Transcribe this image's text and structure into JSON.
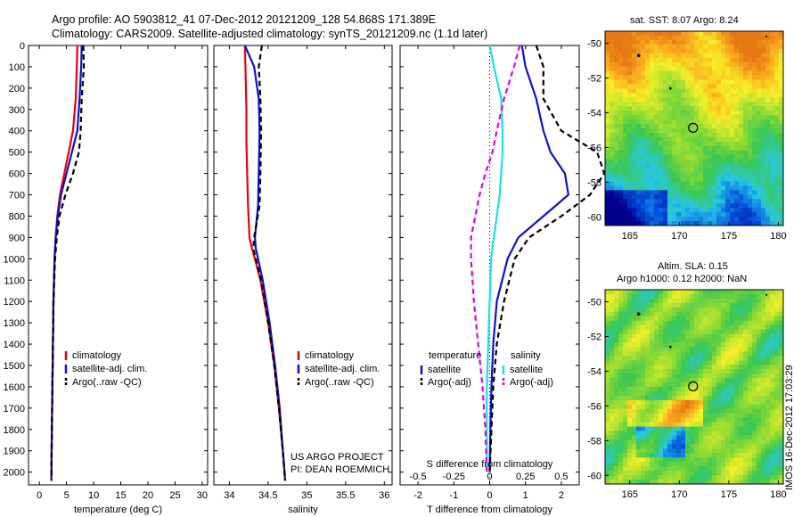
{
  "header": {
    "line1": "Argo profile: AO 5903812_41 07-Dec-2012 20121209_128 54.868S 171.389E",
    "line2": "Climatology: CARS2009. Satellite-adjusted climatology: synTS_20121209.nc (1.1d later)"
  },
  "colors": {
    "climatology": "#e8000b",
    "satellite": "#1010cc",
    "argo": "#000000",
    "cyan": "#19e0e8",
    "magenta": "#e000e0"
  },
  "chart_data": [
    {
      "type": "line",
      "id": "temperature",
      "xlabel": "temperature (deg C)",
      "ylabel": "",
      "xlim": [
        -2,
        31
      ],
      "ylim": [
        2060,
        0
      ],
      "xticks": [
        "0",
        "5",
        "10",
        "15",
        "20",
        "25",
        "30"
      ],
      "yticks": [
        "0",
        "100",
        "200",
        "300",
        "400",
        "500",
        "600",
        "700",
        "800",
        "900",
        "1000",
        "1100",
        "1200",
        "1300",
        "1400",
        "1500",
        "1600",
        "1700",
        "1800",
        "1900",
        "2000"
      ],
      "legend": [
        "climatology",
        "satellite-adj. clim.",
        "Argo(..raw -QC)"
      ],
      "series": [
        {
          "name": "climatology",
          "style": "climatology",
          "x": [
            7.0,
            6.9,
            6.7,
            6.2,
            5.4,
            4.6,
            3.8,
            3.3,
            3.0,
            2.8,
            2.6,
            2.5,
            2.4,
            2.3,
            2.2
          ],
          "y": [
            0,
            100,
            250,
            400,
            500,
            600,
            700,
            800,
            900,
            1000,
            1200,
            1400,
            1600,
            1800,
            2040
          ]
        },
        {
          "name": "satellite-adj. clim.",
          "style": "satellite",
          "x": [
            7.8,
            7.7,
            7.4,
            7.0,
            6.0,
            5.0,
            4.0,
            3.4,
            3.0,
            2.8,
            2.6,
            2.5,
            2.4,
            2.3,
            2.2
          ],
          "y": [
            0,
            100,
            250,
            400,
            500,
            600,
            700,
            800,
            900,
            1000,
            1200,
            1400,
            1600,
            1800,
            2040
          ]
        },
        {
          "name": "Argo(..raw -QC)",
          "style": "argo",
          "x": [
            8.1,
            8.2,
            7.8,
            7.6,
            7.3,
            6.2,
            4.8,
            3.7,
            3.2,
            2.9,
            2.6,
            2.5,
            2.4,
            2.3,
            2.2
          ],
          "y": [
            0,
            100,
            250,
            400,
            500,
            600,
            700,
            800,
            900,
            1000,
            1200,
            1400,
            1600,
            1800,
            2040
          ]
        }
      ]
    },
    {
      "type": "line",
      "id": "salinity",
      "xlabel": "salinity",
      "xlim": [
        33.8,
        36.1
      ],
      "ylim": [
        2060,
        0
      ],
      "xticks": [
        "34",
        "34.5",
        "35",
        "35.5",
        "36"
      ],
      "legend": [
        "climatology",
        "satellite-adj. clim.",
        "Argo(..raw -QC)"
      ],
      "series": [
        {
          "name": "climatology",
          "style": "climatology",
          "x": [
            34.2,
            34.21,
            34.22,
            34.22,
            34.23,
            34.24,
            34.26,
            34.29,
            34.33,
            34.4,
            34.5,
            34.58,
            34.64,
            34.69,
            34.72
          ],
          "y": [
            0,
            150,
            300,
            450,
            600,
            750,
            900,
            950,
            1000,
            1100,
            1300,
            1500,
            1700,
            1900,
            2040
          ]
        },
        {
          "name": "satellite-adj. clim.",
          "style": "satellite",
          "x": [
            34.2,
            34.32,
            34.38,
            34.39,
            34.38,
            34.37,
            34.33,
            34.34,
            34.37,
            34.43,
            34.52,
            34.59,
            34.65,
            34.69,
            34.72
          ],
          "y": [
            0,
            100,
            250,
            400,
            600,
            750,
            900,
            950,
            1000,
            1100,
            1300,
            1500,
            1700,
            1900,
            2040
          ]
        },
        {
          "name": "Argo(..raw -QC)",
          "style": "argo",
          "x": [
            34.42,
            34.38,
            34.4,
            34.41,
            34.4,
            34.39,
            34.32,
            34.31,
            34.34,
            34.41,
            34.5,
            34.58,
            34.64,
            34.69,
            34.72
          ],
          "y": [
            0,
            100,
            250,
            400,
            600,
            750,
            900,
            950,
            1000,
            1100,
            1300,
            1500,
            1700,
            1900,
            2040
          ]
        }
      ],
      "annotation": [
        "US ARGO PROJECT",
        "PI: DEAN ROEMMICH"
      ]
    },
    {
      "type": "line",
      "id": "difference",
      "xlabel": "T difference from climatology",
      "xlabel_top": "S difference from climatology",
      "xlim": [
        -2.5,
        2.5
      ],
      "ylim": [
        2060,
        0
      ],
      "xticks": [
        "-2",
        "-1",
        "0",
        "1",
        "2"
      ],
      "xticks_top": [
        "-0.5",
        "-0.25",
        "0",
        "0.25",
        "0.5"
      ],
      "legend_left_title": "temperature",
      "legend_right_title": "salinity",
      "legend_left": [
        "satellite",
        "Argo(-adj)"
      ],
      "legend_right": [
        "satellite",
        "Argo(-adj)"
      ],
      "series": [
        {
          "name": "satellite",
          "group": "temperature",
          "style": "satellite",
          "x": [
            0.9,
            1.0,
            1.3,
            1.5,
            1.7,
            2.1,
            2.2,
            1.5,
            0.8,
            0.5,
            0.2,
            0.1,
            0.05,
            0.02,
            0.0
          ],
          "y": [
            0,
            100,
            250,
            400,
            500,
            600,
            700,
            800,
            900,
            1000,
            1200,
            1400,
            1600,
            1800,
            2000
          ]
        },
        {
          "name": "Argo(-adj)",
          "group": "temperature",
          "style": "argo",
          "x": [
            1.3,
            1.5,
            1.5,
            2.0,
            3.0,
            3.2,
            2.8,
            2.0,
            1.1,
            0.7,
            0.4,
            0.2,
            0.1,
            0.05,
            0.0
          ],
          "y": [
            0,
            100,
            250,
            400,
            500,
            600,
            700,
            800,
            900,
            1000,
            1200,
            1400,
            1600,
            1800,
            2000
          ]
        },
        {
          "name": "satellite",
          "group": "salinity",
          "style": "cyan",
          "x": [
            0.0,
            0.03,
            0.08,
            0.09,
            0.09,
            0.08,
            0.07,
            0.05,
            0.03,
            0.01,
            0.0,
            -0.01,
            -0.02,
            -0.02,
            -0.02
          ],
          "y": [
            0,
            100,
            250,
            400,
            500,
            600,
            700,
            800,
            900,
            1000,
            1200,
            1400,
            1600,
            1800,
            2000
          ]
        },
        {
          "name": "Argo(-adj)",
          "group": "salinity",
          "style": "magenta",
          "x": [
            0.21,
            0.17,
            0.1,
            0.05,
            0.02,
            -0.03,
            -0.07,
            -0.1,
            -0.13,
            -0.13,
            -0.11,
            -0.08,
            -0.05,
            -0.03,
            -0.02
          ],
          "y": [
            0,
            100,
            250,
            400,
            500,
            600,
            700,
            800,
            900,
            1000,
            1200,
            1400,
            1600,
            1800,
            2000
          ]
        }
      ]
    }
  ],
  "maps": {
    "sst": {
      "title": "sat. SST: 8.07 Argo: 8.24",
      "yticks": [
        "-50",
        "-52",
        "-54",
        "-56",
        "-58",
        "-60"
      ],
      "xticks": [
        "165",
        "170",
        "175",
        "180"
      ],
      "lon": [
        162.5,
        180.5
      ],
      "lat": [
        -60.5,
        -49.3
      ],
      "marker": {
        "lon": 171.389,
        "lat": -54.868
      }
    },
    "sla": {
      "title1": "Altim. SLA: 0.15",
      "title2": "Argo h1000: 0.12 h2000: NaN",
      "yticks": [
        "-50",
        "-52",
        "-54",
        "-56",
        "-58",
        "-60"
      ],
      "xticks": [
        "165",
        "170",
        "175",
        "180"
      ],
      "lon": [
        162.5,
        180.5
      ],
      "lat": [
        -60.5,
        -49.3
      ],
      "marker": {
        "lon": 171.389,
        "lat": -54.868
      }
    }
  },
  "watermark": "IMOS 16-Dec-2012 17:03:29"
}
